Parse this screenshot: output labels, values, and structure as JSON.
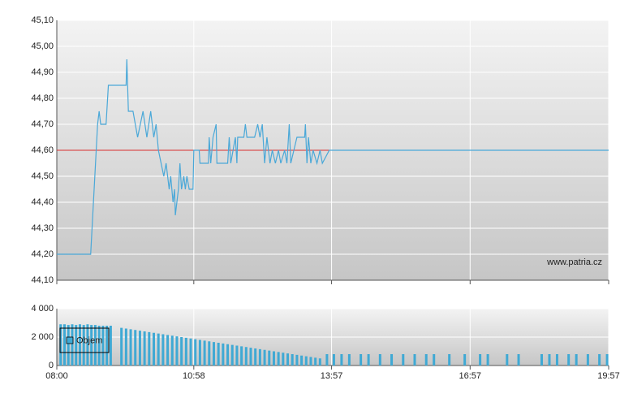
{
  "chart_data": [
    {
      "type": "line",
      "annotation": "www.patria.cz",
      "x": [
        "08:00",
        "08:44",
        "08:53",
        "08:55",
        "08:57",
        "09:04",
        "09:05",
        "09:07",
        "09:30",
        "09:31",
        "09:33",
        "09:39",
        "09:45",
        "09:52",
        "09:57",
        "10:02",
        "10:06",
        "10:09",
        "10:12",
        "10:19",
        "10:22",
        "10:26",
        "10:28",
        "10:31",
        "10:33",
        "10:34",
        "10:36",
        "10:38",
        "10:40",
        "10:42",
        "10:45",
        "10:47",
        "10:49",
        "10:52",
        "10:57",
        "10:58",
        "11:05",
        "11:06",
        "11:17",
        "11:18",
        "11:20",
        "11:23",
        "11:27",
        "11:28",
        "11:42",
        "11:44",
        "11:46",
        "11:52",
        "11:54",
        "11:55",
        "12:03",
        "12:05",
        "12:07",
        "12:17",
        "12:21",
        "12:24",
        "12:27",
        "12:30",
        "12:33",
        "12:37",
        "12:40",
        "12:44",
        "12:48",
        "12:51",
        "12:56",
        "12:59",
        "13:02",
        "13:04",
        "13:12",
        "13:22",
        "13:23",
        "13:25",
        "13:27",
        "13:30",
        "13:33",
        "13:38",
        "13:42",
        "13:45",
        "13:54",
        "19:57"
      ],
      "series": [
        {
          "color": "#4aa8d8",
          "values": [
            44.2,
            44.2,
            44.7,
            44.75,
            44.7,
            44.7,
            44.75,
            44.85,
            44.85,
            44.95,
            44.75,
            44.75,
            44.65,
            44.75,
            44.65,
            44.75,
            44.65,
            44.7,
            44.6,
            44.5,
            44.55,
            44.45,
            44.5,
            44.4,
            44.45,
            44.35,
            44.4,
            44.45,
            44.55,
            44.45,
            44.5,
            44.45,
            44.5,
            44.45,
            44.45,
            44.6,
            44.6,
            44.55,
            44.55,
            44.65,
            44.55,
            44.65,
            44.7,
            44.55,
            44.55,
            44.65,
            44.55,
            44.65,
            44.55,
            44.65,
            44.65,
            44.7,
            44.65,
            44.65,
            44.7,
            44.65,
            44.7,
            44.55,
            44.65,
            44.55,
            44.6,
            44.55,
            44.6,
            44.55,
            44.6,
            44.55,
            44.7,
            44.55,
            44.65,
            44.65,
            44.7,
            44.55,
            44.65,
            44.55,
            44.6,
            44.55,
            44.6,
            44.55,
            44.6,
            44.6
          ]
        }
      ],
      "reference_line": 44.6,
      "reference_color": "#d93030",
      "xlim": [
        "08:00",
        "19:57"
      ],
      "xticks": [
        "08:00",
        "10:58",
        "13:57",
        "16:57",
        "19:57"
      ],
      "ylim": [
        44.1,
        45.1
      ],
      "yticks": [
        {
          "value": 44.1,
          "label": "44,10"
        },
        {
          "value": 44.2,
          "label": "44,20"
        },
        {
          "value": 44.3,
          "label": "44,30"
        },
        {
          "value": 44.4,
          "label": "44,40"
        },
        {
          "value": 44.5,
          "label": "44,50"
        },
        {
          "value": 44.6,
          "label": "44,60"
        },
        {
          "value": 44.7,
          "label": "44,70"
        },
        {
          "value": 44.8,
          "label": "44,80"
        },
        {
          "value": 44.9,
          "label": "44,90"
        },
        {
          "value": 45.0,
          "label": "45,00"
        },
        {
          "value": 45.1,
          "label": "45,10"
        }
      ],
      "grid": true
    },
    {
      "type": "bar",
      "legend": "upper left",
      "x": [
        "08:05",
        "08:10",
        "08:15",
        "08:20",
        "08:25",
        "08:30",
        "08:35",
        "08:40",
        "08:45",
        "08:50",
        "08:55",
        "09:00",
        "09:05",
        "09:10",
        "09:24",
        "09:30",
        "09:36",
        "09:42",
        "09:48",
        "09:54",
        "10:00",
        "10:06",
        "10:12",
        "10:18",
        "10:24",
        "10:30",
        "10:36",
        "10:42",
        "10:48",
        "10:54",
        "11:00",
        "11:06",
        "11:12",
        "11:18",
        "11:24",
        "11:30",
        "11:36",
        "11:42",
        "11:48",
        "11:54",
        "12:00",
        "12:06",
        "12:12",
        "12:18",
        "12:24",
        "12:30",
        "12:36",
        "12:42",
        "12:48",
        "12:54",
        "13:00",
        "13:06",
        "13:12",
        "13:18",
        "13:24",
        "13:30",
        "13:36",
        "13:42",
        "13:51",
        "14:00",
        "14:10",
        "14:20",
        "14:35",
        "14:45",
        "15:00",
        "15:15",
        "15:30",
        "15:45",
        "16:00",
        "16:10",
        "16:30",
        "16:50",
        "17:10",
        "17:20",
        "17:45",
        "18:00",
        "18:30",
        "18:40",
        "18:50",
        "19:05",
        "19:15",
        "19:30",
        "19:45",
        "19:55"
      ],
      "series": [
        {
          "name": "Objem",
          "color": "#3fa9d4",
          "values": [
            2900,
            2900,
            2850,
            2900,
            2850,
            2900,
            2850,
            2900,
            2850,
            2850,
            2800,
            2800,
            2800,
            2800,
            2650,
            2600,
            2550,
            2500,
            2450,
            2400,
            2350,
            2300,
            2250,
            2200,
            2150,
            2100,
            2050,
            2000,
            1950,
            1900,
            1850,
            1800,
            1750,
            1700,
            1650,
            1600,
            1550,
            1500,
            1450,
            1400,
            1350,
            1300,
            1250,
            1200,
            1150,
            1100,
            1050,
            1000,
            950,
            900,
            850,
            800,
            750,
            700,
            650,
            600,
            550,
            500,
            800,
            800,
            800,
            800,
            800,
            800,
            800,
            800,
            800,
            800,
            800,
            800,
            800,
            800,
            800,
            800,
            800,
            800,
            800,
            800,
            800,
            800,
            800,
            800,
            800,
            800
          ]
        }
      ],
      "xlim": [
        "08:00",
        "19:57"
      ],
      "xticks": [
        "08:00",
        "10:58",
        "13:57",
        "16:57",
        "19:57"
      ],
      "ylim": [
        0,
        4000
      ],
      "yticks": [
        0,
        {
          "value": 2000,
          "label": "2 000"
        },
        {
          "value": 4000,
          "label": "4 000"
        }
      ],
      "grid": true
    }
  ]
}
